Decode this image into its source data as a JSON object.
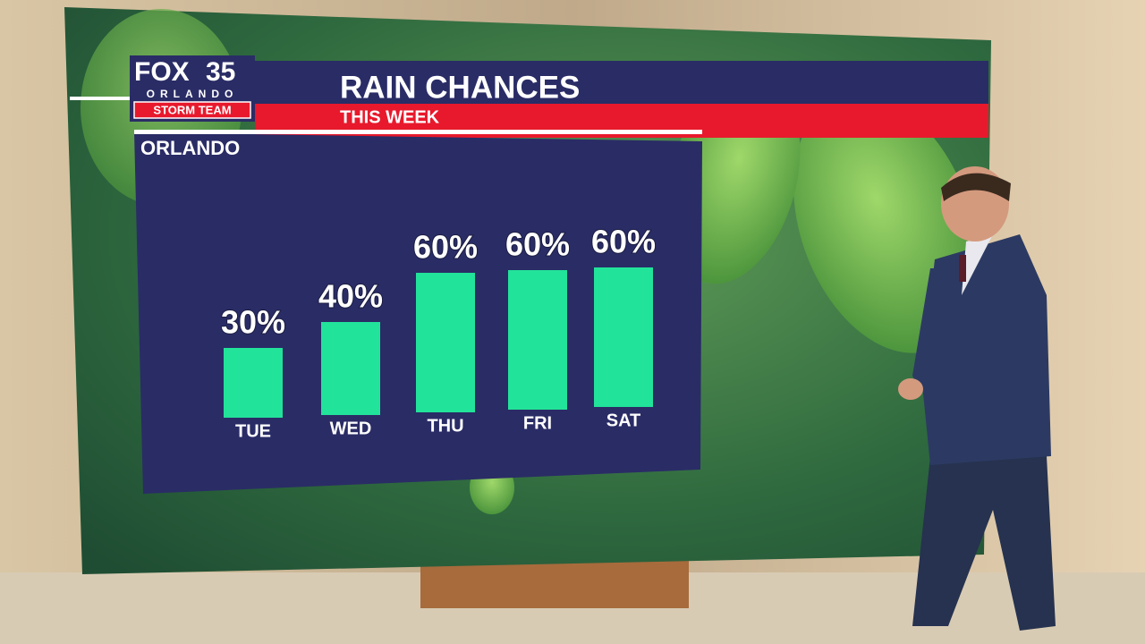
{
  "logo": {
    "brand": "FOX",
    "number": "35",
    "city": "ORLANDO",
    "team": "STORM TEAM"
  },
  "chart_data": {
    "type": "bar",
    "title": "RAIN CHANCES",
    "subtitle": "THIS WEEK",
    "location": "ORLANDO",
    "categories": [
      "TUE",
      "WED",
      "THU",
      "FRI",
      "SAT"
    ],
    "values": [
      30,
      40,
      60,
      60,
      60
    ],
    "value_labels": [
      "30%",
      "40%",
      "60%",
      "60%",
      "60%"
    ],
    "color": "#22e39a"
  }
}
